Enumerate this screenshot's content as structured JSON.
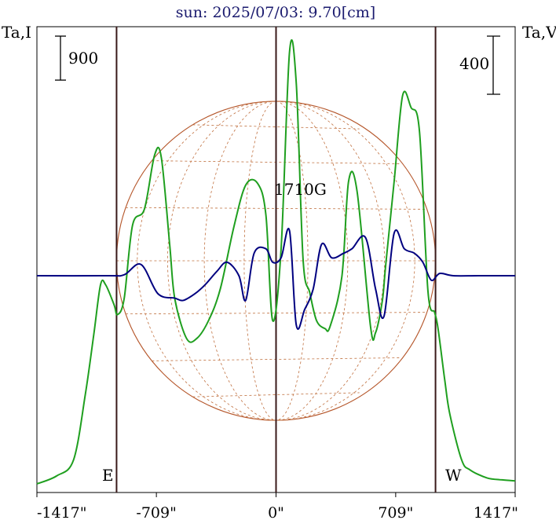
{
  "chart_data": {
    "type": "line",
    "title": "sun: 2025/07/03: 9.70[cm]",
    "left_axis_label": "Ta,I",
    "right_axis_label": "Ta,V",
    "left_scale_bar": "900",
    "right_scale_bar": "400",
    "annotation": "1710G",
    "east_label": "E",
    "west_label": "W",
    "xlim": [
      -1417,
      1417
    ],
    "x_ticks": [
      {
        "value": -1417,
        "label": "-1417\""
      },
      {
        "value": -709,
        "label": "-709\""
      },
      {
        "value": 0,
        "label": "0\""
      },
      {
        "value": 709,
        "label": "709\""
      },
      {
        "value": 1417,
        "label": "1417\""
      }
    ],
    "vertical_markers": [
      -945,
      0,
      945
    ],
    "solar_disk": {
      "radius_arcsec": 945
    },
    "series": [
      {
        "color": "#1f9f1f",
        "y_scale": 0.2535,
        "x": [
          -1417,
          -1300,
          -1200,
          -1130,
          -1080,
          -1040,
          -1010,
          -960,
          -940,
          -900,
          -850,
          -780,
          -720,
          -680,
          -630,
          -600,
          -530,
          -470,
          -400,
          -330,
          -250,
          -180,
          -110,
          -60,
          -20,
          30,
          80,
          120,
          160,
          200,
          240,
          290,
          320,
          390,
          430,
          480,
          560,
          590,
          630,
          650,
          700,
          750,
          800,
          850,
          900,
          940,
          960,
          1000,
          1030,
          1100,
          1150,
          1250,
          1340,
          1417
        ],
        "y": [
          0,
          40,
          120,
          450,
          750,
          1000,
          1000,
          900,
          850,
          930,
          1300,
          1380,
          1650,
          1640,
          1200,
          930,
          730,
          730,
          820,
          980,
          1290,
          1500,
          1510,
          1350,
          820,
          1180,
          2170,
          2010,
          1130,
          960,
          820,
          780,
          790,
          1040,
          1520,
          1470,
          790,
          760,
          920,
          1100,
          1520,
          1950,
          1890,
          1770,
          970,
          860,
          780,
          520,
          350,
          120,
          70,
          30,
          20,
          15
        ]
      },
      {
        "color": "#000080",
        "y_scale": 0.5714,
        "x": [
          -1417,
          -1000,
          -900,
          -800,
          -700,
          -600,
          -550,
          -480,
          -420,
          -350,
          -290,
          -220,
          -180,
          -130,
          -60,
          -20,
          30,
          80,
          120,
          170,
          220,
          270,
          330,
          400,
          450,
          530,
          590,
          640,
          700,
          760,
          820,
          870,
          920,
          970,
          1050,
          1200,
          1417
        ],
        "y": [
          0,
          0,
          2,
          25,
          -40,
          -50,
          -55,
          -40,
          -20,
          10,
          30,
          0,
          -55,
          50,
          60,
          30,
          40,
          100,
          -110,
          -75,
          -30,
          70,
          40,
          50,
          60,
          85,
          -30,
          -90,
          95,
          60,
          50,
          30,
          -10,
          5,
          0,
          0,
          0
        ]
      }
    ]
  }
}
